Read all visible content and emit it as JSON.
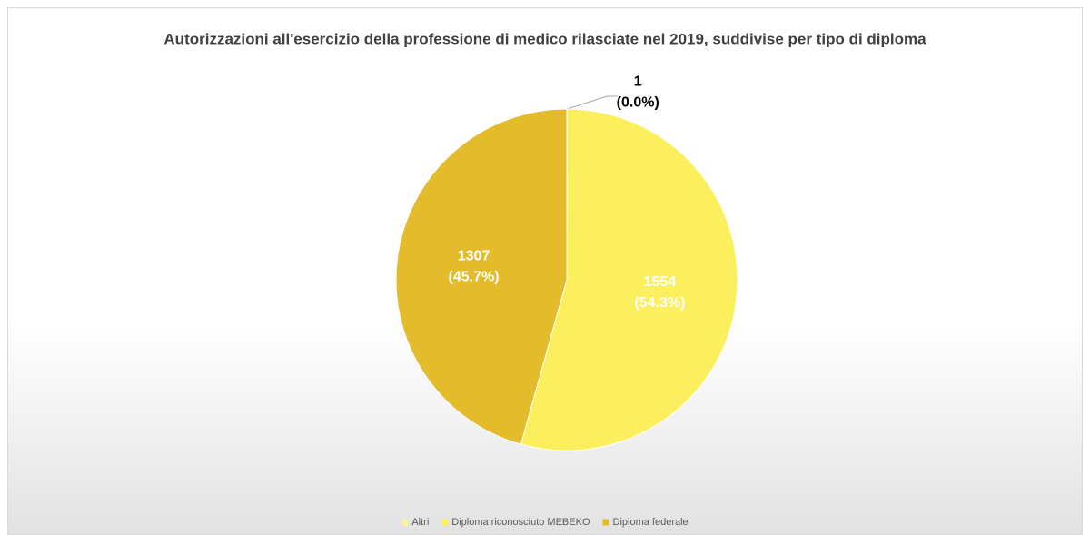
{
  "chart_data": {
    "type": "pie",
    "title": "Autorizzazioni all'esercizio della professione di medico rilasciate nel 2019, suddivise per tipo di diploma",
    "categories": [
      "Altri",
      "Diploma riconosciuto MEBEKO",
      "Diploma federale"
    ],
    "values": [
      1,
      1554,
      1307
    ],
    "value_labels": [
      [
        "1",
        "(0.0%)"
      ],
      [
        "1554",
        "(54.3%)"
      ],
      [
        "1307",
        "(45.7%)"
      ]
    ],
    "colors": [
      "#fbf0a0",
      "#fbef5e",
      "#e3bb2b"
    ],
    "legend": "bottom"
  }
}
